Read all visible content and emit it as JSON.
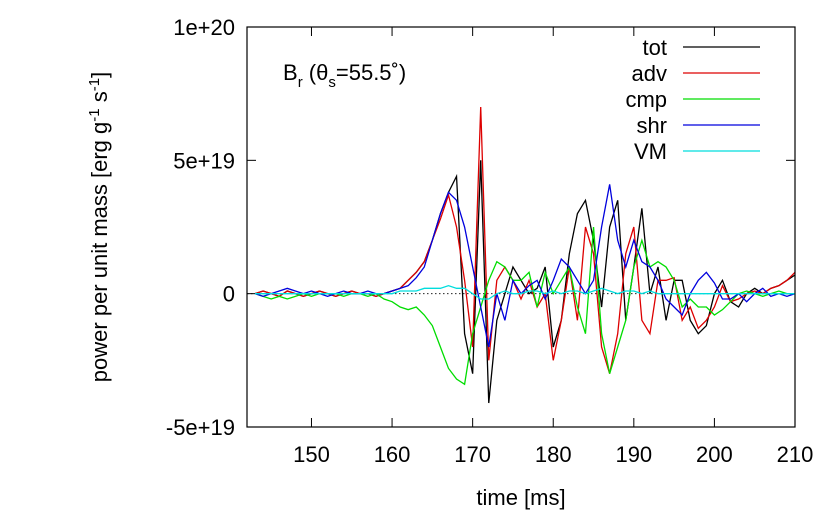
{
  "chart_data": {
    "type": "line",
    "annotation_parts": [
      "B",
      "r",
      " (θ",
      "s",
      "=55.5˚)"
    ],
    "ylabel_parts": [
      "power per unit mass [erg g",
      "-1",
      " s",
      "-1",
      "]"
    ],
    "xlabel": "time [ms]",
    "xlim": [
      142,
      210
    ],
    "xticks": [
      150,
      160,
      170,
      180,
      190,
      200,
      210
    ],
    "ylim": [
      -5e+19,
      1e+20
    ],
    "yticks": [
      {
        "value": -5e+19,
        "label": "-5e+19"
      },
      0,
      {
        "value": 5e+19,
        "label": "5e+19"
      },
      {
        "value": 1e+20,
        "label": "1e+20"
      }
    ],
    "zero_line": true,
    "legend": "top right",
    "x": [
      143,
      144,
      145,
      146,
      147,
      148,
      149,
      150,
      151,
      152,
      153,
      154,
      155,
      156,
      157,
      158,
      159,
      160,
      161,
      162,
      163,
      164,
      165,
      166,
      167,
      168,
      169,
      170,
      171,
      172,
      173,
      174,
      175,
      176,
      177,
      178,
      179,
      180,
      181,
      182,
      183,
      184,
      185,
      186,
      187,
      188,
      189,
      190,
      191,
      192,
      193,
      194,
      195,
      196,
      197,
      198,
      199,
      200,
      201,
      202,
      203,
      204,
      205,
      206,
      207,
      208,
      209,
      210
    ],
    "series": [
      {
        "name": "tot",
        "color": "#000000",
        "values": [
          0,
          1e+18,
          0,
          -1e+18,
          1e+18,
          0,
          -1e+18,
          0,
          1e+18,
          0,
          -1e+18,
          0,
          1e+18,
          0,
          0,
          -1e+18,
          0,
          1e+18,
          2e+18,
          5e+18,
          8e+18,
          1.2e+19,
          2e+19,
          3e+19,
          3.8e+19,
          4.4e+19,
          -1.5e+19,
          -3e+19,
          5e+19,
          -4.1e+19,
          -1e+19,
          0,
          1e+19,
          5e+18,
          0,
          2e+18,
          1e+19,
          -2e+19,
          -1e+19,
          1.5e+19,
          3e+19,
          3.5e+19,
          2e+19,
          -5e+18,
          2.5e+19,
          3.5e+19,
          -1e+19,
          1e+19,
          3.2e+19,
          0,
          1e+19,
          -1e+19,
          5e+18,
          5e+18,
          -1e+19,
          -1.5e+19,
          -1.2e+19,
          0,
          5e+18,
          -3e+18,
          -5e+18,
          0,
          2e+18,
          0,
          2e+18,
          3e+18,
          5e+18,
          7e+18
        ]
      },
      {
        "name": "adv",
        "color": "#dd0000",
        "values": [
          0,
          1e+18,
          0,
          -1e+18,
          1e+18,
          0,
          -1e+18,
          0,
          1e+18,
          0,
          -1e+18,
          0,
          1e+18,
          0,
          0,
          -1e+18,
          0,
          1e+18,
          2e+18,
          5e+18,
          8e+18,
          1.2e+19,
          2e+19,
          2.8e+19,
          3.7e+19,
          2.5e+19,
          5e+18,
          -2e+19,
          7e+19,
          -2.5e+19,
          5e+18,
          1e+19,
          5e+18,
          -2e+18,
          5e+18,
          -5e+18,
          0,
          -2.5e+19,
          -1e+19,
          1e+19,
          -1e+19,
          2.5e+19,
          1.5e+19,
          -2e+19,
          -3e+19,
          -1.5e+19,
          1.5e+19,
          2.5e+19,
          -1e+19,
          -1.5e+19,
          5e+18,
          5e+18,
          6e+18,
          -1e+19,
          -5e+18,
          -1.3e+19,
          -1e+19,
          -5e+18,
          3e+18,
          -3e+18,
          -2e+18,
          0,
          1e+18,
          0,
          2e+18,
          3e+18,
          5e+18,
          8e+18
        ]
      },
      {
        "name": "cmp",
        "color": "#00dd00",
        "values": [
          0,
          -1e+18,
          -2e+18,
          -1e+18,
          -2e+18,
          -1e+18,
          0,
          -1e+18,
          0,
          0,
          0,
          -1e+18,
          0,
          0,
          -1e+18,
          0,
          -2e+18,
          -3e+18,
          -5e+18,
          -6e+18,
          -5e+18,
          -8e+18,
          -1.2e+19,
          -2e+19,
          -2.8e+19,
          -3.2e+19,
          -3.4e+19,
          -1.5e+19,
          -5e+18,
          5e+18,
          1.2e+19,
          1e+19,
          5e+18,
          5e+18,
          8e+18,
          -5e+18,
          8e+18,
          0,
          5e+18,
          1e+19,
          -5e+18,
          -1.5e+19,
          2.5e+19,
          -1.5e+19,
          -3e+19,
          -2e+19,
          -1e+19,
          1e+19,
          2e+19,
          1e+19,
          1.2e+19,
          1e+19,
          5e+18,
          -5e+18,
          -2e+18,
          -5e+18,
          -5e+18,
          -8e+18,
          -6e+18,
          -3e+18,
          0,
          1e+18,
          0,
          -1e+18,
          0,
          1e+18,
          0,
          0
        ]
      },
      {
        "name": "shr",
        "color": "#0000dd",
        "values": [
          0,
          -1e+18,
          0,
          1e+18,
          2e+18,
          1e+18,
          0,
          1e+18,
          0,
          -1e+18,
          0,
          1e+18,
          0,
          0,
          1e+18,
          0,
          0,
          1e+18,
          2e+18,
          3e+18,
          6e+18,
          1e+19,
          2e+19,
          3e+19,
          3.8e+19,
          3.5e+19,
          2.5e+19,
          1e+19,
          -5e+18,
          -2e+19,
          0,
          -1e+19,
          5e+18,
          0,
          3e+18,
          5e+18,
          -2e+18,
          5e+18,
          1.3e+19,
          1e+19,
          5e+18,
          0,
          5e+18,
          2.5e+19,
          4.1e+19,
          2e+19,
          1e+19,
          2e+19,
          1.2e+19,
          1e+19,
          5e+18,
          -2e+18,
          -5e+18,
          -8e+18,
          0,
          5e+18,
          8e+18,
          4e+18,
          -2e+18,
          -2e+18,
          0,
          -3e+18,
          0,
          2e+18,
          -1e+18,
          0,
          -1e+18,
          0
        ]
      },
      {
        "name": "VM",
        "color": "#00dddd",
        "values": [
          0,
          0,
          0,
          0,
          0,
          0,
          0,
          0,
          0,
          0,
          0,
          0,
          0,
          0,
          0,
          0,
          0,
          0,
          1e+18,
          1e+18,
          1e+18,
          2e+18,
          2e+18,
          2e+18,
          3e+18,
          2e+18,
          2e+18,
          0,
          -2e+18,
          -2e+18,
          0,
          1e+18,
          0,
          0,
          1e+18,
          1e+18,
          0,
          1e+18,
          0,
          1e+18,
          1e+18,
          0,
          1e+18,
          2e+18,
          1e+18,
          0,
          1e+18,
          1e+18,
          0,
          1e+18,
          0,
          0,
          0,
          0,
          0,
          0,
          0,
          0,
          0,
          0,
          0,
          0,
          0,
          0,
          0,
          0,
          0,
          0
        ]
      }
    ]
  }
}
